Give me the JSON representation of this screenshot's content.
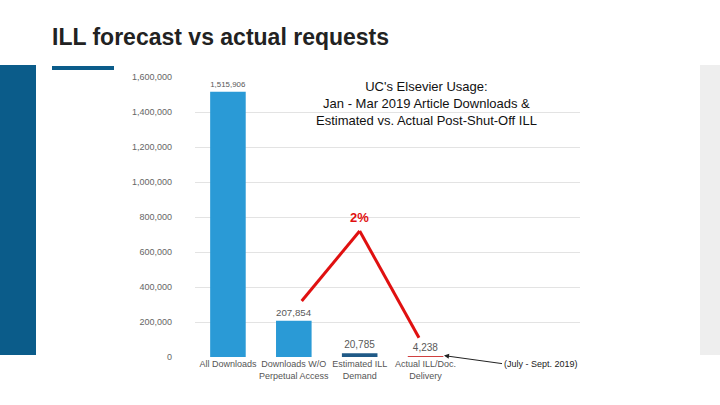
{
  "heading": "ILL forecast vs actual requests",
  "chart_data": {
    "type": "bar",
    "title": [
      "UC's Elsevier Usage:",
      "Jan - Mar 2019 Article Downloads &",
      "Estimated vs. Actual Post-Shut-Off ILL"
    ],
    "categories": [
      "All Downloads",
      "Downloads W/O Perpetual Access",
      "Estimated ILL Demand",
      "Actual ILL/Doc. Delivery"
    ],
    "values": [
      1515906,
      207854,
      20785,
      4238
    ],
    "value_labels": [
      "1,515,906",
      "207,854",
      "20,785",
      "4,238"
    ],
    "colors": [
      "#2a9ad6",
      "#2a9ad6",
      "#1f5a87",
      "#c00000"
    ],
    "data_labels": true,
    "ylim": [
      0,
      1600000
    ],
    "yticks": [
      0,
      {
        "value": 200000,
        "label": "200,000"
      },
      {
        "value": 400000,
        "label": "400,000"
      },
      {
        "value": 600000,
        "label": "600,000"
      },
      {
        "value": 800000,
        "label": "800,000"
      },
      {
        "value": 1000000,
        "label": "1,000,000"
      },
      {
        "value": 1200000,
        "label": "1,200,000"
      },
      {
        "value": 1400000,
        "label": "1,400,000"
      },
      {
        "value": 1600000,
        "label": "1,600,000"
      }
    ],
    "grid": true,
    "annotations": [
      {
        "text": "2%"
      },
      {
        "text": "(July - Sept. 2019)"
      }
    ]
  }
}
